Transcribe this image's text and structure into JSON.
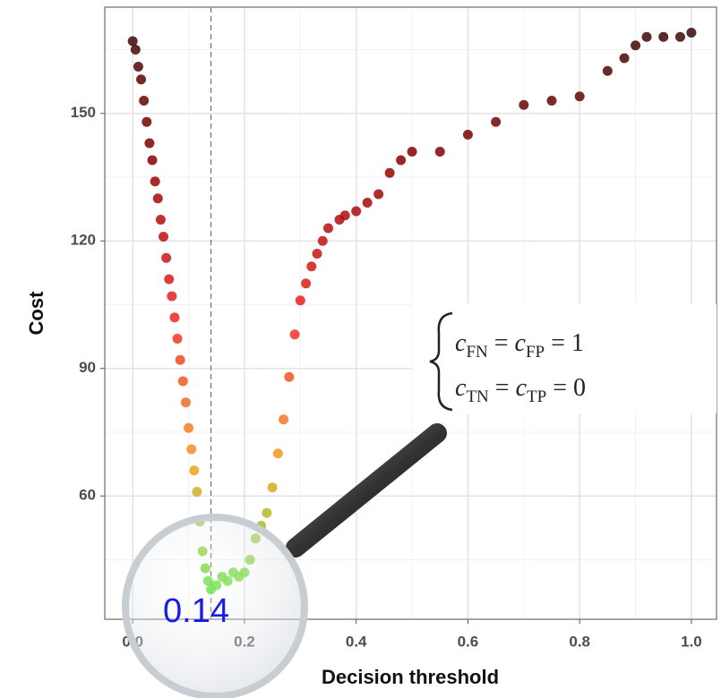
{
  "chart_data": {
    "type": "scatter",
    "x": [
      0.0,
      0.005,
      0.01,
      0.015,
      0.02,
      0.025,
      0.03,
      0.035,
      0.04,
      0.045,
      0.05,
      0.055,
      0.06,
      0.065,
      0.07,
      0.075,
      0.08,
      0.085,
      0.09,
      0.095,
      0.1,
      0.105,
      0.11,
      0.115,
      0.12,
      0.125,
      0.13,
      0.135,
      0.14,
      0.15,
      0.16,
      0.17,
      0.18,
      0.19,
      0.2,
      0.21,
      0.22,
      0.23,
      0.24,
      0.25,
      0.26,
      0.27,
      0.28,
      0.29,
      0.3,
      0.31,
      0.32,
      0.33,
      0.34,
      0.35,
      0.37,
      0.38,
      0.4,
      0.42,
      0.44,
      0.46,
      0.48,
      0.5,
      0.55,
      0.6,
      0.65,
      0.7,
      0.75,
      0.8,
      0.85,
      0.88,
      0.9,
      0.92,
      0.95,
      0.98,
      1.0
    ],
    "values": [
      167,
      165,
      161,
      158,
      153,
      148,
      143,
      139,
      134,
      130,
      125,
      121,
      116,
      111,
      107,
      102,
      97,
      92,
      87,
      82,
      76,
      71,
      66,
      61,
      54,
      47,
      43,
      40,
      38,
      39,
      41,
      40,
      42,
      41,
      42,
      45,
      50,
      53,
      56,
      62,
      70,
      78,
      88,
      98,
      106,
      110,
      114,
      117,
      120,
      123,
      125,
      126,
      127,
      129,
      131,
      136,
      139,
      141,
      141,
      145,
      148,
      152,
      153,
      154,
      160,
      163,
      166,
      168,
      168,
      168,
      169
    ],
    "color_scale": [
      "#33ee33",
      "#f0a020",
      "#ee2222",
      "#8b0000",
      "#2a0808"
    ],
    "x_label": "Decision threshold",
    "y_label": "Cost",
    "xlim": [
      -0.05,
      1.045
    ],
    "ylim": [
      31,
      175
    ],
    "xticks": [
      {
        "value": 0,
        "label": "0.0"
      },
      0.2,
      0.4,
      0.6,
      0.8,
      {
        "value": 1,
        "label": "1.0"
      }
    ],
    "yticks": [
      60,
      90,
      120,
      150
    ],
    "grid": true,
    "vline": {
      "value": 0.14,
      "label": "0.14"
    },
    "formula": [
      [
        "c",
        "FN",
        " = ",
        "c",
        "FP",
        " = 1"
      ],
      [
        "c",
        "TN",
        " = ",
        "c",
        "TP",
        " = 0"
      ]
    ]
  }
}
